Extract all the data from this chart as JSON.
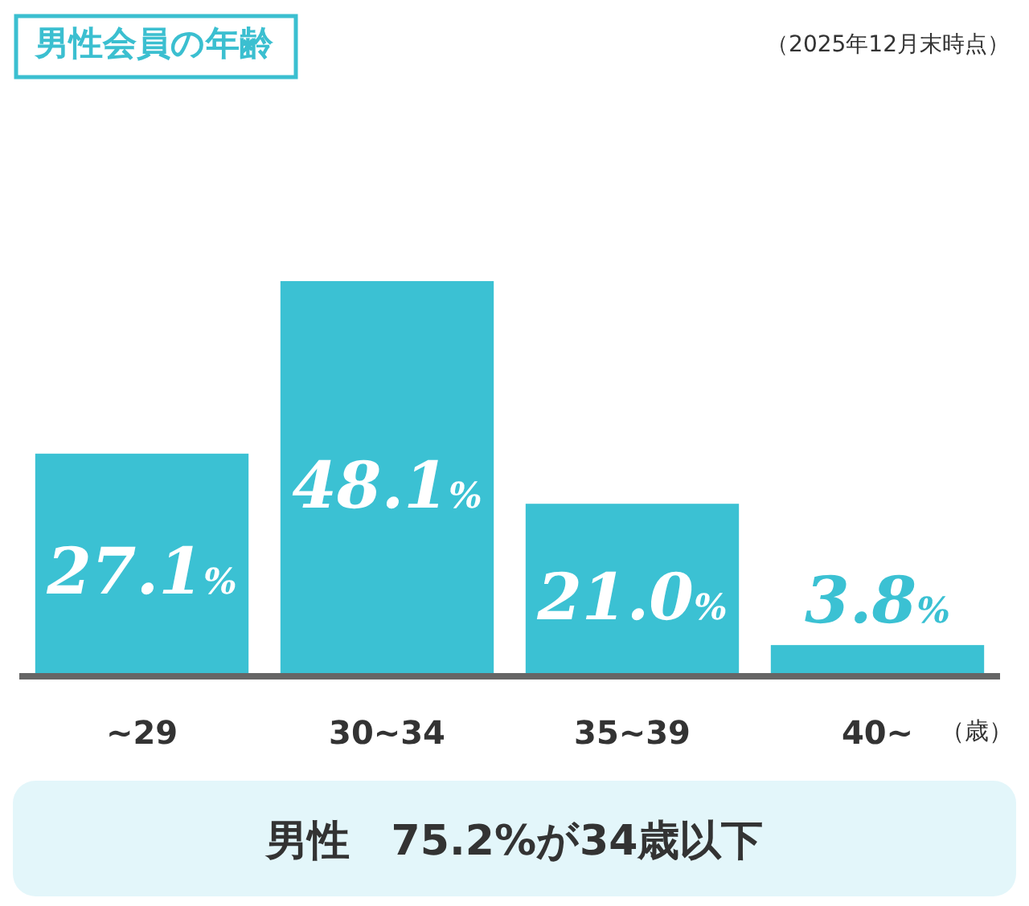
{
  "chart_data": {
    "type": "bar",
    "title": "男性会員の年齢",
    "subtitle": "（2025年12月末時点）",
    "xlabel": "（歳）",
    "categories": [
      "~29",
      "30~34",
      "35~39",
      "40~"
    ],
    "values": [
      27.1,
      48.1,
      21.0,
      3.8
    ],
    "value_labels": [
      "27.1%",
      "48.1%",
      "21.0%",
      "3.8%"
    ],
    "color": "#3bc1d3",
    "annotations": [
      "男性　75.2%が34歳以下"
    ]
  }
}
